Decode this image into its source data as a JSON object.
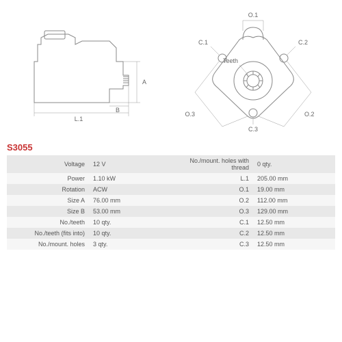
{
  "model": "S3055",
  "diagram": {
    "side_view": {
      "labels": {
        "L1": "L.1",
        "A": "A",
        "B": "B"
      }
    },
    "front_view": {
      "labels": {
        "O1": "O.1",
        "O2": "O.2",
        "O3": "O.3",
        "C1": "C.1",
        "C2": "C.2",
        "C3": "C.3",
        "teeth": "Teeth"
      }
    },
    "stroke_color": "#888888",
    "dim_color": "#999999",
    "text_color": "#666666"
  },
  "specs_left": [
    {
      "label": "Voltage",
      "value": "12 V"
    },
    {
      "label": "Power",
      "value": "1.10 kW"
    },
    {
      "label": "Rotation",
      "value": "ACW"
    },
    {
      "label": "Size A",
      "value": "76.00 mm"
    },
    {
      "label": "Size B",
      "value": "53.00 mm"
    },
    {
      "label": "No./teeth",
      "value": "10 qty."
    },
    {
      "label": "No./teeth (fits into)",
      "value": "10 qty."
    },
    {
      "label": "No./mount. holes",
      "value": "3 qty."
    }
  ],
  "specs_right": [
    {
      "label": "No./mount. holes with thread",
      "value": "0 qty."
    },
    {
      "label": "L.1",
      "value": "205.00 mm"
    },
    {
      "label": "O.1",
      "value": "19.00 mm"
    },
    {
      "label": "O.2",
      "value": "112.00 mm"
    },
    {
      "label": "O.3",
      "value": "129.00 mm"
    },
    {
      "label": "C.1",
      "value": "12.50 mm"
    },
    {
      "label": "C.2",
      "value": "12.50 mm"
    },
    {
      "label": "C.3",
      "value": "12.50 mm"
    }
  ]
}
